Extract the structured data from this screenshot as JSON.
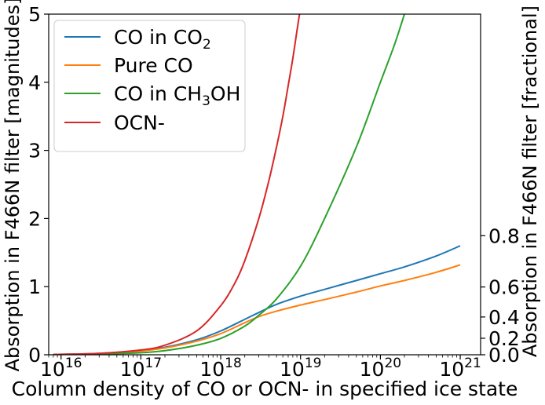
{
  "chart_data": {
    "type": "line",
    "xlabel": "Column density of CO or OCN- in specified ice state",
    "ylabel": "Absorption in F466N filter [magnitudes]",
    "ylabel_right": "Absorption in F466N filter [fractional]",
    "x_scale": "log",
    "xlim": [
      7000000000000000.0,
      1.8e+21
    ],
    "ylim": [
      0,
      5
    ],
    "x_ticks": [
      {
        "base": "10",
        "exp": "16",
        "value": 1e+16
      },
      {
        "base": "10",
        "exp": "17",
        "value": 1e+17
      },
      {
        "base": "10",
        "exp": "18",
        "value": 1e+18
      },
      {
        "base": "10",
        "exp": "19",
        "value": 1e+19
      },
      {
        "base": "10",
        "exp": "20",
        "value": 1e+20
      },
      {
        "base": "10",
        "exp": "21",
        "value": 1e+21
      }
    ],
    "y_ticks": [
      "0",
      "1",
      "2",
      "3",
      "4",
      "5"
    ],
    "y_ticks_right": [
      "0.0",
      "0.2",
      "0.4",
      "0.6",
      "0.8"
    ],
    "grid": false,
    "legend_position": "top-left",
    "series": [
      {
        "name": "CO in CO",
        "name_sub": "2",
        "color": "#1f77b4",
        "x": [
          8000000000000000.0,
          1e+16,
          3e+16,
          1e+17,
          2e+17,
          5e+17,
          1e+18,
          2e+18,
          3e+18,
          5e+18,
          1e+19,
          2e+19,
          5e+19,
          1e+20,
          2e+20,
          5e+20,
          1e+21
        ],
        "y": [
          0.005,
          0.007,
          0.02,
          0.06,
          0.11,
          0.22,
          0.35,
          0.52,
          0.62,
          0.74,
          0.86,
          0.96,
          1.09,
          1.19,
          1.29,
          1.45,
          1.6
        ]
      },
      {
        "name": "Pure CO",
        "color": "#ff7f0e",
        "x": [
          8000000000000000.0,
          1e+16,
          3e+16,
          1e+17,
          2e+17,
          5e+17,
          1e+18,
          2e+18,
          3e+18,
          5e+18,
          1e+19,
          2e+19,
          5e+19,
          1e+20,
          2e+20,
          5e+20,
          1e+21
        ],
        "y": [
          0.004,
          0.006,
          0.018,
          0.055,
          0.1,
          0.2,
          0.31,
          0.47,
          0.56,
          0.64,
          0.73,
          0.81,
          0.92,
          1.01,
          1.09,
          1.21,
          1.32
        ]
      },
      {
        "name": "CO in CH",
        "name_sub": "3",
        "name_suffix": "OH",
        "color": "#2ca02c",
        "x": [
          8000000000000000.0,
          1e+16,
          3e+16,
          1e+17,
          2e+17,
          5e+17,
          1e+18,
          2e+18,
          3e+18,
          5e+18,
          1e+19,
          2e+19,
          5e+19,
          1e+20,
          1.5e+20,
          2e+20
        ],
        "y": [
          0.003,
          0.004,
          0.01,
          0.03,
          0.06,
          0.14,
          0.24,
          0.42,
          0.58,
          0.82,
          1.3,
          2.0,
          3.05,
          4.0,
          4.55,
          5.0
        ]
      },
      {
        "name": "OCN-",
        "color": "#d62728",
        "x": [
          8000000000000000.0,
          1e+16,
          3e+16,
          1e+17,
          2e+17,
          5e+17,
          1e+18,
          1.5e+18,
          2e+18,
          3e+18,
          4e+18,
          5e+18,
          6e+18,
          7e+18,
          8e+18,
          9e+18,
          1e+19
        ],
        "y": [
          0.004,
          0.006,
          0.02,
          0.07,
          0.14,
          0.35,
          0.72,
          1.05,
          1.38,
          2.0,
          2.55,
          3.05,
          3.5,
          3.95,
          4.35,
          4.75,
          5.1
        ]
      }
    ]
  }
}
